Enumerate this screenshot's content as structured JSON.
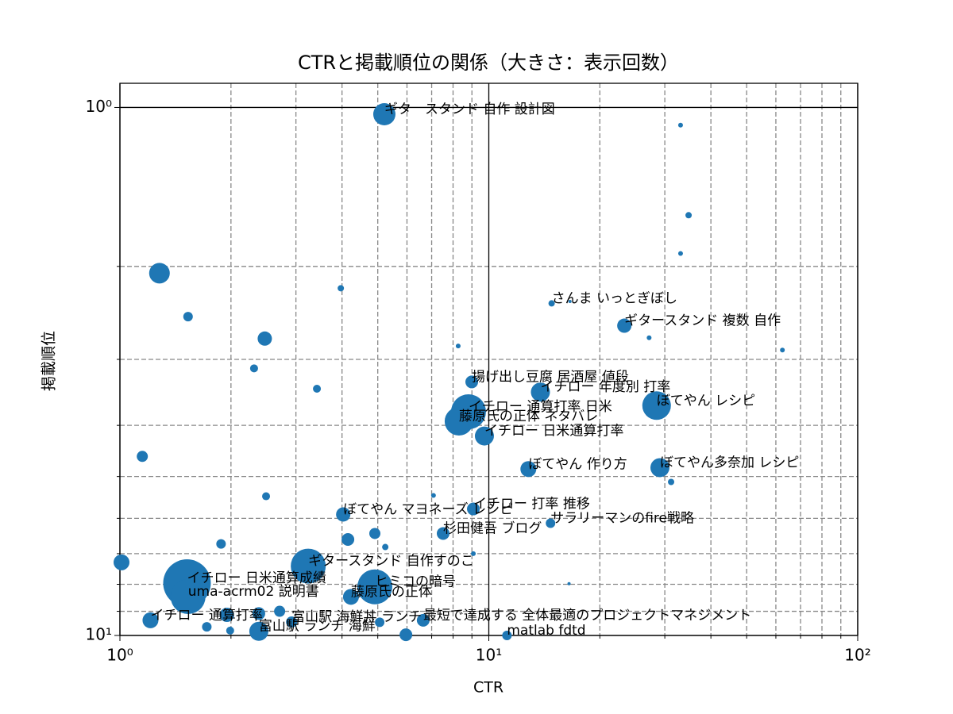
{
  "chart_data": {
    "type": "scatter",
    "title": "CTRと掲載順位の関係（大きさ：表示回数）",
    "xlabel": "CTR",
    "ylabel": "掲載順位",
    "xscale": "log",
    "yscale": "log",
    "y_inverted": true,
    "grid": true,
    "color": "#1f77b4",
    "xlim": [
      1,
      100
    ],
    "ylim": [
      0.9,
      10
    ],
    "xticks": [
      {
        "value": 1,
        "label": "10⁰"
      },
      {
        "value": 10,
        "label": "10¹"
      },
      {
        "value": 100,
        "label": "10²"
      }
    ],
    "yticks": [
      {
        "value": 1,
        "label": "10⁰"
      },
      {
        "value": 10,
        "label": "10¹"
      }
    ],
    "xminorticks": [
      2,
      3,
      4,
      5,
      6,
      7,
      8,
      9,
      20,
      30,
      40,
      50,
      60,
      70,
      80,
      90
    ],
    "yminorticks": [
      2,
      3,
      4,
      5,
      6,
      7,
      8,
      9
    ],
    "x": [
      5.21,
      33.1,
      34.8,
      33.1,
      1.28,
      3.97,
      1.53,
      14.8,
      16.6,
      23.3,
      27.2,
      62.5,
      2.47,
      8.26,
      2.31,
      3.42,
      8.99,
      13.8,
      28.5,
      8.81,
      8.3,
      9.73,
      1.15,
      12.8,
      29.1,
      31.2,
      2.49,
      7.08,
      9.08,
      4.03,
      14.7,
      7.52,
      4.91,
      1.88,
      4.15,
      5.24,
      9.08,
      1.01,
      3.24,
      4.91,
      1.52,
      1.53,
      4.23,
      16.5,
      1.21,
      1.95,
      2.38,
      2.71,
      2.92,
      2.38,
      1.72,
      6.64,
      11.2,
      5.06,
      1.99,
      5.96
    ],
    "y": [
      1.03,
      1.08,
      1.6,
      1.89,
      2.06,
      2.2,
      2.49,
      2.35,
      2.33,
      2.59,
      2.73,
      2.88,
      2.74,
      2.83,
      3.12,
      3.41,
      3.31,
      3.46,
      3.67,
      3.77,
      3.93,
      4.19,
      4.58,
      4.84,
      4.81,
      5.12,
      5.45,
      5.43,
      5.76,
      5.9,
      6.13,
      6.41,
      6.41,
      6.71,
      6.58,
      6.8,
      7.0,
      7.27,
      7.39,
      8.09,
      7.96,
      8.44,
      8.45,
      7.98,
      9.36,
      9.14,
      9.09,
      9.0,
      9.43,
      9.82,
      9.63,
      9.36,
      10,
      9.44,
      9.79,
      9.97
    ],
    "sizes": [
      1960,
      90,
      160,
      90,
      1690,
      160,
      360,
      160,
      40,
      810,
      90,
      90,
      810,
      90,
      250,
      250,
      640,
      1440,
      3240,
      4840,
      3240,
      1440,
      490,
      1000,
      1440,
      160,
      250,
      90,
      640,
      810,
      360,
      640,
      490,
      360,
      640,
      160,
      90,
      1000,
      4840,
      4840,
      9000,
      4840,
      1000,
      40,
      1000,
      810,
      640,
      490,
      490,
      1440,
      360,
      640,
      360,
      360,
      250,
      640
    ],
    "labels": [
      "ギタ　スタンド 自作 設計図",
      null,
      null,
      null,
      null,
      null,
      null,
      "さんま いっとぎぼし",
      null,
      "ギタースタンド 複数 自作",
      null,
      null,
      null,
      null,
      null,
      null,
      "揚げ出し豆腐 居酒屋 値段",
      "イチロー 年度別 打率",
      "ぼてやん レシピ",
      "イチロー 通算打率 日米",
      "藤原氏の正体 ネタバレ",
      "イチロー 日米通算打率",
      null,
      "ぼてやん 作り方",
      "ぼてやん多奈加 レシピ",
      null,
      null,
      null,
      "イチロー 打率 推移",
      "ぼてやん マヨネーズ レシピ",
      "サラリーマンのfire戦略",
      "杉田健吾 ブログ",
      null,
      null,
      null,
      null,
      null,
      null,
      "ギタースタンド 自作すのこ",
      "ヒミコの暗号",
      "イチロー 日米通算成績",
      "uma-acrm02 説明書",
      "藤原氏の正体",
      null,
      "イチロー 通算打率",
      null,
      null,
      null,
      "富山駅 海鮮丼 ランチ",
      "富山駅 ランチ 海鮮",
      null,
      "最短で達成する 全体最適のプロジェクトマネジメント",
      "matlab fdtd",
      null,
      null,
      null
    ]
  }
}
